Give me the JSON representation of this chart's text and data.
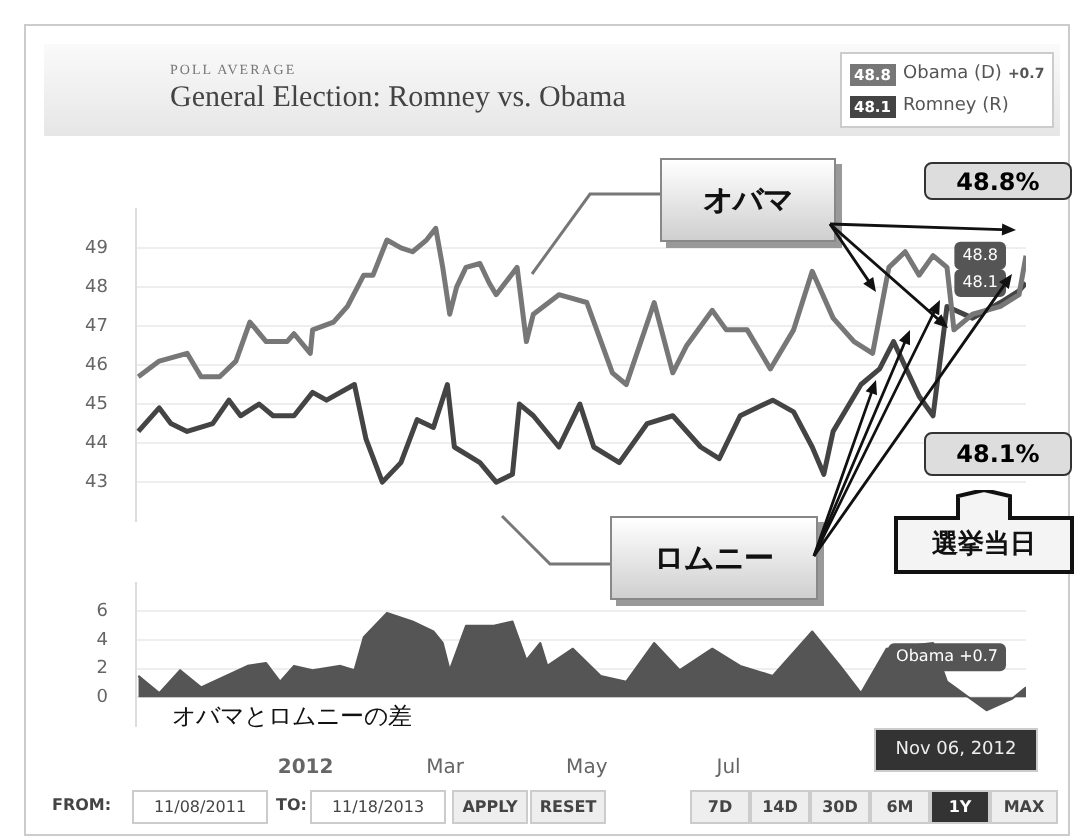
{
  "chart_data": [
    {
      "type": "line",
      "subtitle": "POLL AVERAGE",
      "title": "General Election: Romney vs. Obama",
      "legend": "top right",
      "grid": "y",
      "tick_labels": "y",
      "xlim": [
        "2011-10-20",
        "2012-11-06"
      ],
      "ylim": [
        42,
        50
      ],
      "yticks": [
        43,
        44,
        45,
        46,
        47,
        48,
        49
      ],
      "series": [
        {
          "name": "Obama (D)",
          "color": "#777777",
          "x": [
            "2011-10-21",
            "2011-10-30",
            "2011-11-11",
            "2011-11-17",
            "2011-11-25",
            "2011-12-02",
            "2011-12-08",
            "2011-12-15",
            "2011-12-24",
            "2011-12-27",
            "2012-01-03",
            "2012-01-04",
            "2012-01-13",
            "2012-01-19",
            "2012-01-26",
            "2012-01-30",
            "2012-02-05",
            "2012-02-11",
            "2012-02-16",
            "2012-02-22",
            "2012-02-26",
            "2012-02-29",
            "2012-03-03",
            "2012-03-06",
            "2012-03-10",
            "2012-03-16",
            "2012-03-20",
            "2012-03-23",
            "2012-04-01",
            "2012-04-05",
            "2012-04-08",
            "2012-04-19",
            "2012-05-01",
            "2012-05-12",
            "2012-05-18",
            "2012-05-30",
            "2012-06-07",
            "2012-06-13",
            "2012-06-24",
            "2012-06-30",
            "2012-07-09",
            "2012-07-19",
            "2012-07-29",
            "2012-08-06",
            "2012-08-15",
            "2012-08-24",
            "2012-09-01",
            "2012-09-08",
            "2012-09-15",
            "2012-09-21",
            "2012-09-27",
            "2012-10-03",
            "2012-10-06",
            "2012-10-14",
            "2012-10-26",
            "2012-11-03",
            "2012-11-06"
          ],
          "values": [
            45.7,
            46.1,
            46.3,
            45.7,
            45.7,
            46.1,
            47.1,
            46.6,
            46.6,
            46.8,
            46.3,
            46.9,
            47.1,
            47.5,
            48.3,
            48.3,
            49.2,
            49.0,
            48.9,
            49.2,
            49.5,
            48.5,
            47.3,
            48.0,
            48.5,
            48.6,
            48.1,
            47.8,
            48.5,
            46.6,
            47.3,
            47.8,
            47.6,
            45.8,
            45.5,
            47.6,
            45.8,
            46.5,
            47.4,
            46.9,
            46.9,
            45.9,
            46.9,
            48.4,
            47.2,
            46.6,
            46.3,
            48.5,
            48.9,
            48.3,
            48.8,
            48.5,
            46.9,
            47.3,
            47.5,
            47.8,
            48.8
          ]
        },
        {
          "name": "Romney (R)",
          "color": "#444444",
          "x": [
            "2011-10-21",
            "2011-10-30",
            "2011-11-04",
            "2011-11-11",
            "2011-11-22",
            "2011-11-29",
            "2011-12-04",
            "2011-12-12",
            "2011-12-18",
            "2011-12-27",
            "2012-01-04",
            "2012-01-10",
            "2012-01-22",
            "2012-01-27",
            "2012-02-03",
            "2012-02-11",
            "2012-02-18",
            "2012-02-25",
            "2012-03-02",
            "2012-03-05",
            "2012-03-16",
            "2012-03-23",
            "2012-03-30",
            "2012-04-02",
            "2012-04-08",
            "2012-04-19",
            "2012-04-28",
            "2012-05-04",
            "2012-05-15",
            "2012-05-27",
            "2012-06-07",
            "2012-06-19",
            "2012-06-27",
            "2012-07-06",
            "2012-07-20",
            "2012-07-29",
            "2012-08-06",
            "2012-08-11",
            "2012-08-15",
            "2012-08-27",
            "2012-09-04",
            "2012-09-10",
            "2012-09-21",
            "2012-09-27",
            "2012-10-03",
            "2012-10-14",
            "2012-10-26",
            "2012-11-03",
            "2012-11-06"
          ],
          "values": [
            44.3,
            44.9,
            44.5,
            44.3,
            44.5,
            45.1,
            44.7,
            45.0,
            44.7,
            44.7,
            45.3,
            45.1,
            45.5,
            44.1,
            43.0,
            43.5,
            44.6,
            44.4,
            45.5,
            43.9,
            43.5,
            43.0,
            43.2,
            45.0,
            44.7,
            43.9,
            45.0,
            43.9,
            43.5,
            44.5,
            44.7,
            43.9,
            43.6,
            44.7,
            45.1,
            44.8,
            43.9,
            43.2,
            44.3,
            45.5,
            45.9,
            46.6,
            45.2,
            44.7,
            47.5,
            47.2,
            47.6,
            47.9,
            48.1
          ]
        }
      ],
      "annotations": [
        "オバマ",
        "ロムニー",
        "48.8%",
        "48.1%",
        "選挙当日",
        "+0.7",
        {
          "text": "48.8",
          "x": "2012-11-06",
          "y": 48.8
        },
        {
          "text": "48.1",
          "x": "2012-11-06",
          "y": 48.1
        }
      ]
    },
    {
      "type": "area",
      "grid": "y",
      "color": "#555555",
      "xlim": [
        "2011-10-20",
        "2012-11-06"
      ],
      "xticks": [
        {
          "value": "2012-01-01",
          "label": "2012"
        },
        {
          "value": "2012-03-01",
          "label": "Mar"
        },
        {
          "value": "2012-05-01",
          "label": "May"
        },
        {
          "value": "2012-07-01",
          "label": "Jul"
        }
      ],
      "ylim": [
        -2,
        8
      ],
      "yticks": [
        0,
        2,
        4,
        6
      ],
      "x": [
        "2011-10-21",
        "2011-10-30",
        "2011-11-08",
        "2011-11-17",
        "2011-12-07",
        "2011-12-15",
        "2011-12-21",
        "2011-12-27",
        "2012-01-04",
        "2012-01-16",
        "2012-01-22",
        "2012-01-26",
        "2012-02-05",
        "2012-02-16",
        "2012-02-25",
        "2012-02-29",
        "2012-03-03",
        "2012-03-10",
        "2012-03-22",
        "2012-03-30",
        "2012-04-05",
        "2012-04-11",
        "2012-04-14",
        "2012-04-25",
        "2012-05-07",
        "2012-05-18",
        "2012-05-30",
        "2012-06-10",
        "2012-06-24",
        "2012-07-06",
        "2012-07-20",
        "2012-08-06",
        "2012-08-18",
        "2012-08-27",
        "2012-09-07",
        "2012-09-27",
        "2012-10-03",
        "2012-10-20",
        "2012-10-31",
        "2012-11-06"
      ],
      "values": [
        1.5,
        0.3,
        1.9,
        0.7,
        2.2,
        2.4,
        1.1,
        2.2,
        1.9,
        2.2,
        1.9,
        4.2,
        5.9,
        5.3,
        4.6,
        3.8,
        1.9,
        5.0,
        5.0,
        5.3,
        2.6,
        3.8,
        2.2,
        3.4,
        1.5,
        1.1,
        3.8,
        1.9,
        3.4,
        2.2,
        1.5,
        4.6,
        2.2,
        0.3,
        3.4,
        3.8,
        1.1,
        -0.9,
        -0.1,
        0.7
      ],
      "annotations": [
        "オバマとロムニーの差",
        {
          "text": "Obama +0.7",
          "x": "2012-11-06",
          "y": 0.7
        },
        "Nov 06, 2012",
        "FROM:",
        "11/08/2011",
        "TO:",
        "11/18/2013",
        "APPLY",
        "RESET",
        "7D",
        "14D",
        "30D",
        "6M",
        "1Y",
        "MAX"
      ]
    }
  ]
}
